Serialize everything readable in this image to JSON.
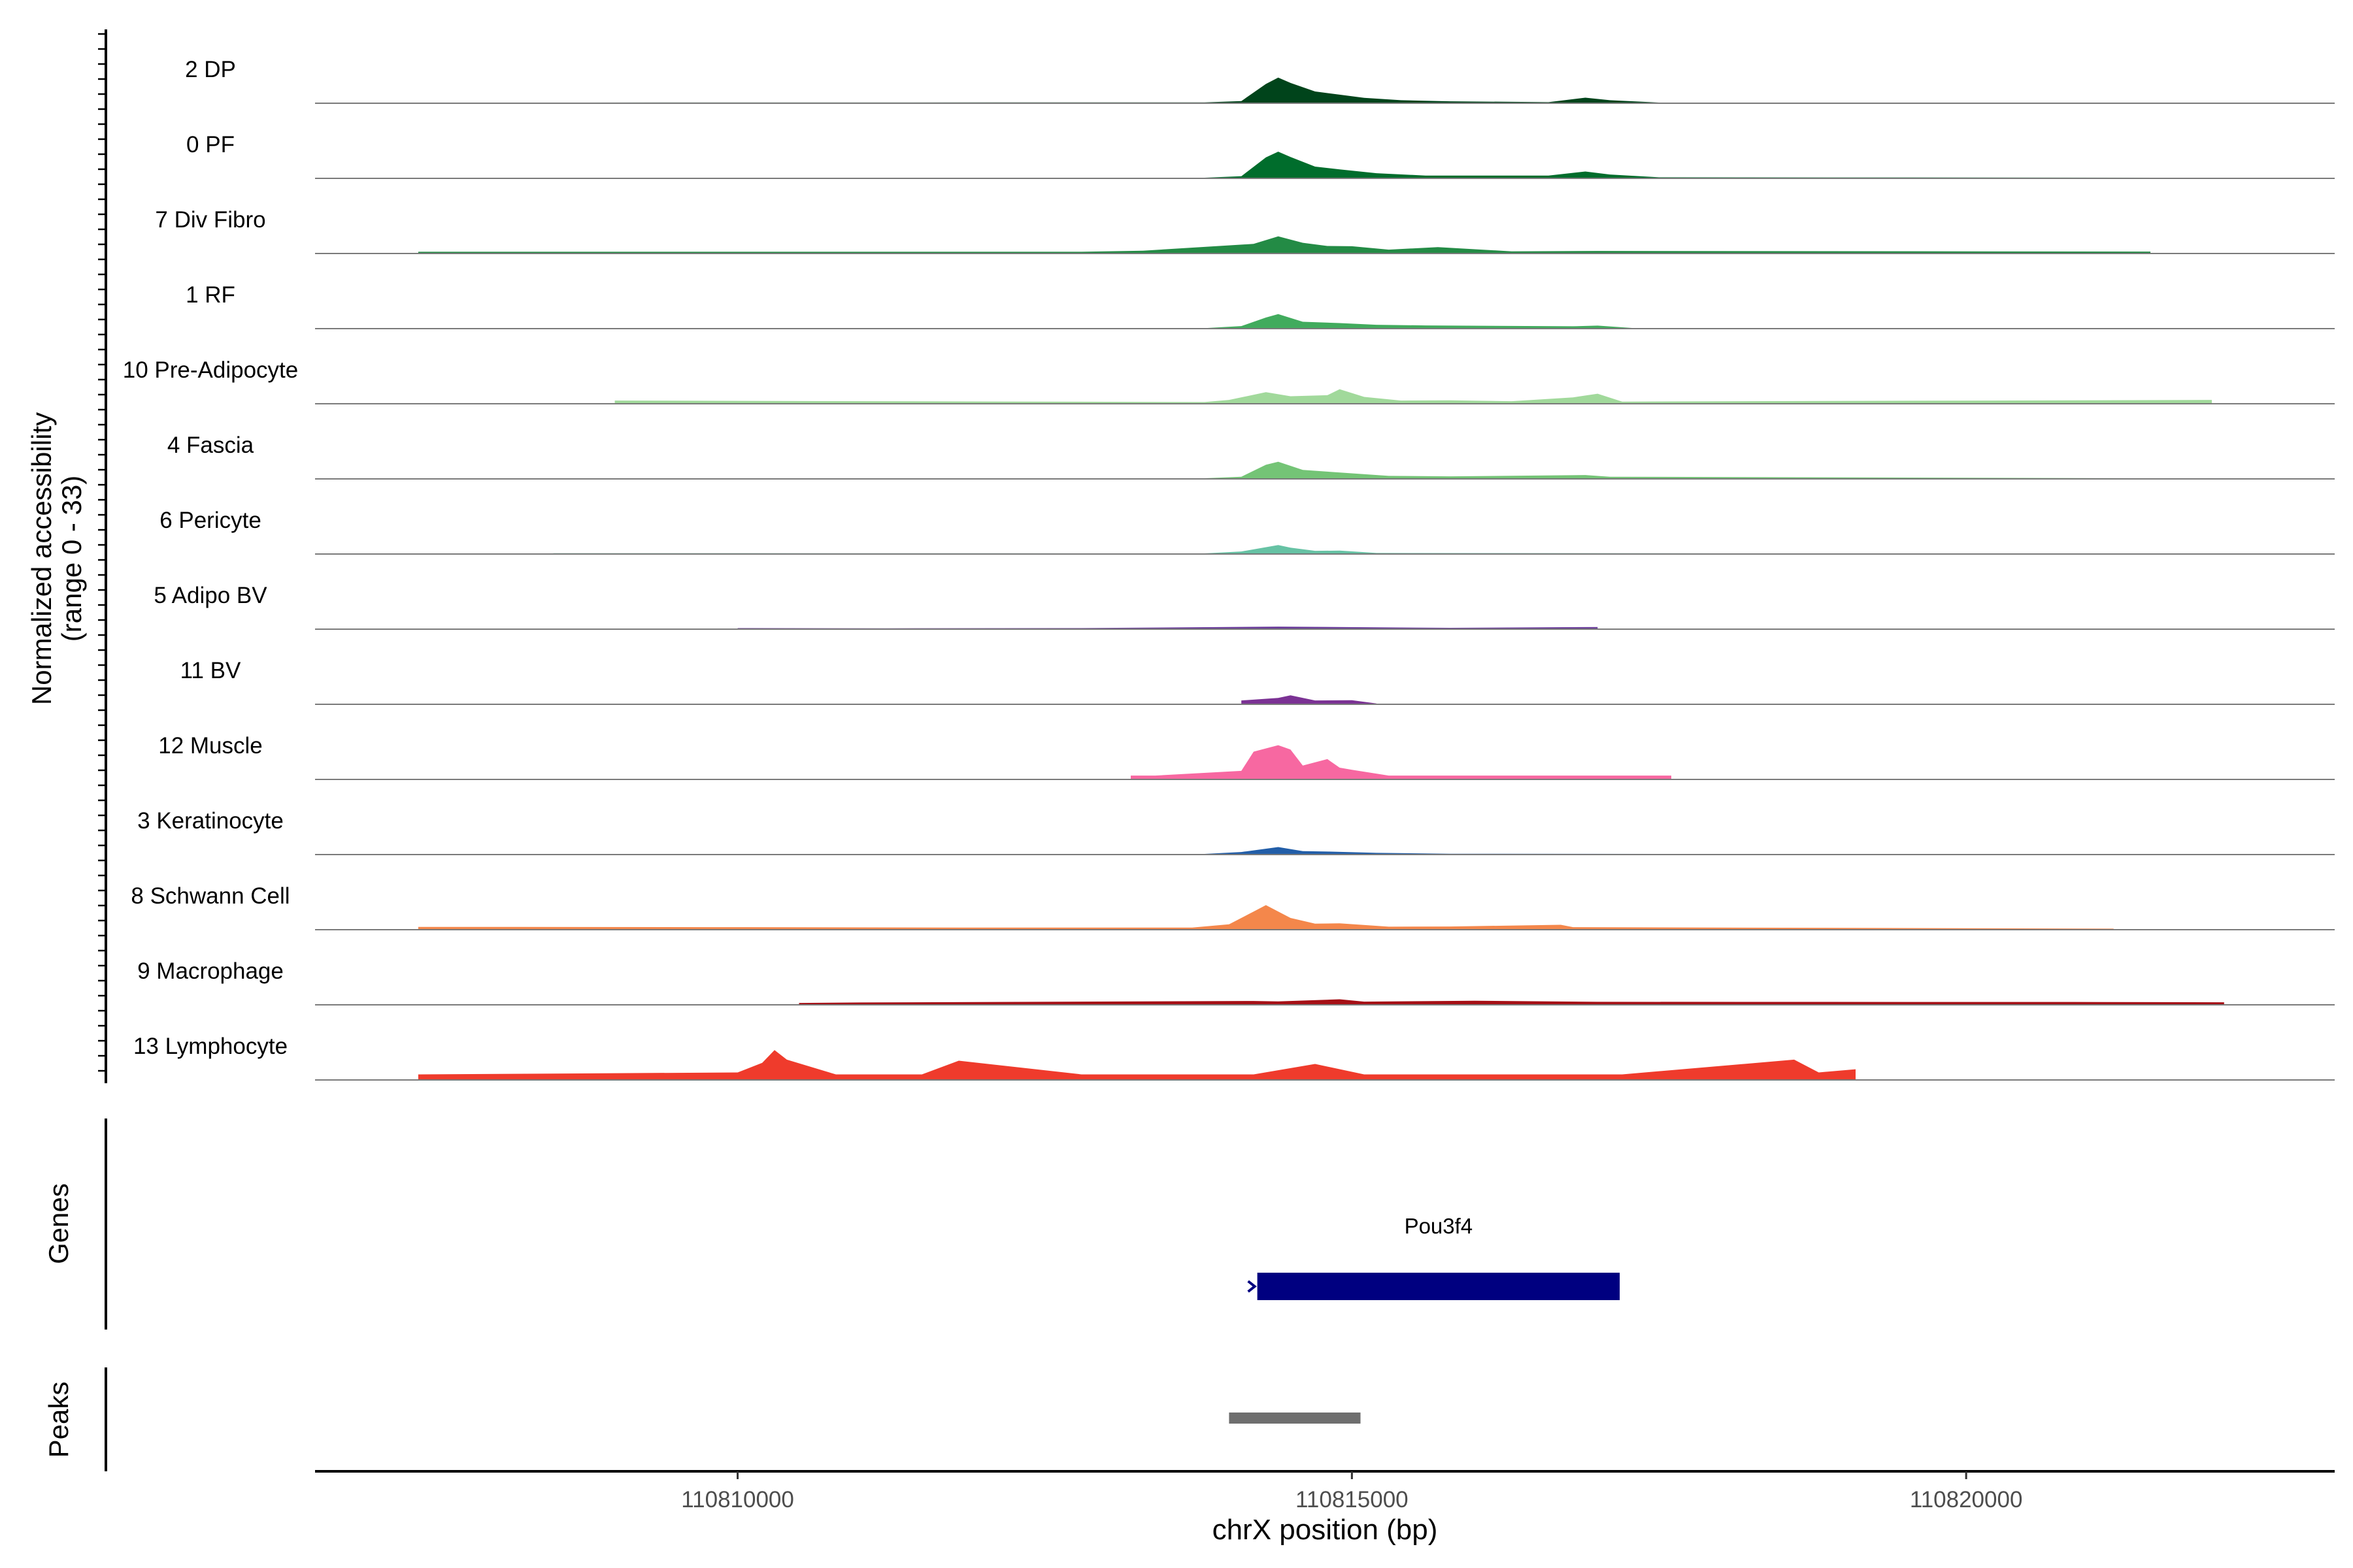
{
  "chart_data": {
    "type": "area",
    "chromosome": "chrX",
    "xlabel": "chrX position (bp)",
    "ylabel": "Normalized accessibility\n(range 0 - 33)",
    "xlim": [
      110806560,
      110823000
    ],
    "x_ticks": [
      110810000,
      110815000,
      110820000
    ],
    "x_tick_labels": [
      "110810000",
      "110815000",
      "110820000"
    ],
    "ylim": [
      0,
      33
    ],
    "tracks": [
      {
        "name": "2 DP",
        "color": "#00441b",
        "points": [
          [
            110807600,
            0.3
          ],
          [
            110813800,
            0.4
          ],
          [
            110814100,
            1.0
          ],
          [
            110814300,
            9.0
          ],
          [
            110814400,
            12.0
          ],
          [
            110814500,
            9.5
          ],
          [
            110814700,
            5.5
          ],
          [
            110814900,
            4.0
          ],
          [
            110815100,
            2.5
          ],
          [
            110815400,
            1.4
          ],
          [
            110815800,
            0.9
          ],
          [
            110816600,
            0.5
          ],
          [
            110816900,
            2.6
          ],
          [
            110817100,
            1.4
          ],
          [
            110817500,
            0.3
          ]
        ]
      },
      {
        "name": "0 PF",
        "color": "#006d2c",
        "points": [
          [
            110807500,
            0.3
          ],
          [
            110813800,
            0.3
          ],
          [
            110814100,
            1.0
          ],
          [
            110814300,
            9.8
          ],
          [
            110814400,
            12.5
          ],
          [
            110814500,
            10.0
          ],
          [
            110814700,
            5.5
          ],
          [
            110814900,
            4.2
          ],
          [
            110815200,
            2.4
          ],
          [
            110815600,
            1.3
          ],
          [
            110816600,
            1.3
          ],
          [
            110816900,
            3.2
          ],
          [
            110817100,
            1.8
          ],
          [
            110817500,
            0.5
          ],
          [
            110822000,
            0.3
          ]
        ]
      },
      {
        "name": "7 Div Fibro",
        "color": "#238b45",
        "points": [
          [
            110807400,
            0.8
          ],
          [
            110812800,
            0.8
          ],
          [
            110813300,
            1.3
          ],
          [
            110814200,
            4.5
          ],
          [
            110814400,
            8.0
          ],
          [
            110814600,
            5.0
          ],
          [
            110814800,
            3.5
          ],
          [
            110815000,
            3.4
          ],
          [
            110815300,
            1.8
          ],
          [
            110815700,
            3.0
          ],
          [
            110816000,
            2.0
          ],
          [
            110816300,
            1.0
          ],
          [
            110817000,
            1.2
          ],
          [
            110821500,
            0.9
          ]
        ]
      },
      {
        "name": "1 RF",
        "color": "#41ab5d",
        "points": [
          [
            110807500,
            0.2
          ],
          [
            110813800,
            0.2
          ],
          [
            110814100,
            1.2
          ],
          [
            110814300,
            5.2
          ],
          [
            110814400,
            6.8
          ],
          [
            110814600,
            3.2
          ],
          [
            110814900,
            2.6
          ],
          [
            110815200,
            1.8
          ],
          [
            110815600,
            1.5
          ],
          [
            110816800,
            1.1
          ],
          [
            110817000,
            1.4
          ],
          [
            110817300,
            0.2
          ]
        ]
      },
      {
        "name": "10 Pre-Adipocyte",
        "color": "#a1d99b",
        "points": [
          [
            110809000,
            1.5
          ],
          [
            110813800,
            0.8
          ],
          [
            110814000,
            1.8
          ],
          [
            110814300,
            5.4
          ],
          [
            110814500,
            3.5
          ],
          [
            110814800,
            4.0
          ],
          [
            110814900,
            6.8
          ],
          [
            110815100,
            3.2
          ],
          [
            110815400,
            1.5
          ],
          [
            110815800,
            1.6
          ],
          [
            110816300,
            1.2
          ],
          [
            110816800,
            3.0
          ],
          [
            110817000,
            4.7
          ],
          [
            110817200,
            1.0
          ],
          [
            110822000,
            1.8
          ]
        ]
      },
      {
        "name": "4 Fascia",
        "color": "#74c476",
        "points": [
          [
            110807500,
            0.3
          ],
          [
            110813800,
            0.3
          ],
          [
            110814100,
            1.0
          ],
          [
            110814300,
            6.6
          ],
          [
            110814400,
            8.0
          ],
          [
            110814600,
            4.2
          ],
          [
            110814800,
            3.4
          ],
          [
            110815000,
            2.6
          ],
          [
            110815300,
            1.4
          ],
          [
            110815800,
            1.2
          ],
          [
            110816900,
            1.8
          ],
          [
            110817100,
            1.0
          ],
          [
            110822000,
            0.2
          ]
        ]
      },
      {
        "name": "6 Pericyte",
        "color": "#66c2a4",
        "points": [
          [
            110808500,
            0.4
          ],
          [
            110813800,
            0.3
          ],
          [
            110814100,
            1.2
          ],
          [
            110814400,
            4.2
          ],
          [
            110814500,
            3.0
          ],
          [
            110814700,
            1.5
          ],
          [
            110814900,
            1.6
          ],
          [
            110815200,
            0.5
          ],
          [
            110818000,
            0.3
          ],
          [
            110820500,
            0.2
          ]
        ]
      },
      {
        "name": "5 Adipo BV",
        "color": "#6a3d9a",
        "points": [
          [
            110810000,
            0.5
          ],
          [
            110811200,
            0.4
          ],
          [
            110812800,
            0.5
          ],
          [
            110814400,
            1.2
          ],
          [
            110815800,
            0.6
          ],
          [
            110817000,
            1.0
          ]
        ]
      },
      {
        "name": "11 BV",
        "color": "#7b3294",
        "points": [
          [
            110814100,
            1.8
          ],
          [
            110814400,
            3.0
          ],
          [
            110814500,
            4.2
          ],
          [
            110814700,
            1.8
          ],
          [
            110815000,
            1.9
          ],
          [
            110815200,
            0.4
          ]
        ]
      },
      {
        "name": "12 Muscle",
        "color": "#f768a1",
        "points": [
          [
            110813200,
            1.8
          ],
          [
            110813400,
            1.8
          ],
          [
            110814100,
            4.0
          ],
          [
            110814200,
            13.0
          ],
          [
            110814400,
            16.0
          ],
          [
            110814500,
            14.0
          ],
          [
            110814600,
            6.5
          ],
          [
            110814800,
            9.5
          ],
          [
            110814900,
            5.5
          ],
          [
            110815000,
            4.5
          ],
          [
            110815300,
            1.8
          ],
          [
            110816400,
            1.8
          ],
          [
            110816600,
            1.8
          ],
          [
            110817300,
            1.8
          ],
          [
            110817600,
            1.8
          ]
        ]
      },
      {
        "name": "3 Keratinocyte",
        "color": "#225ea8",
        "points": [
          [
            110807500,
            0.3
          ],
          [
            110813800,
            0.3
          ],
          [
            110814100,
            1.2
          ],
          [
            110814400,
            3.5
          ],
          [
            110814600,
            1.6
          ],
          [
            110814800,
            1.4
          ],
          [
            110815200,
            0.8
          ],
          [
            110815800,
            0.4
          ],
          [
            110817500,
            0.3
          ],
          [
            110822000,
            0.2
          ]
        ]
      },
      {
        "name": "8 Schwann Cell",
        "color": "#f4874b",
        "points": [
          [
            110807400,
            1.3
          ],
          [
            110808200,
            1.3
          ],
          [
            110809800,
            1.2
          ],
          [
            110811800,
            1.0
          ],
          [
            110813700,
            1.0
          ],
          [
            110814000,
            2.5
          ],
          [
            110814200,
            8.5
          ],
          [
            110814300,
            11.5
          ],
          [
            110814500,
            5.5
          ],
          [
            110814700,
            2.8
          ],
          [
            110814900,
            3.0
          ],
          [
            110815300,
            1.4
          ],
          [
            110815800,
            1.5
          ],
          [
            110816700,
            2.3
          ],
          [
            110816800,
            1.2
          ],
          [
            110821200,
            0.5
          ]
        ]
      },
      {
        "name": "9 Macrophage",
        "color": "#a50f15",
        "points": [
          [
            110810500,
            0.9
          ],
          [
            110811000,
            1.1
          ],
          [
            110814200,
            1.8
          ],
          [
            110814400,
            1.6
          ],
          [
            110814900,
            2.6
          ],
          [
            110815100,
            1.5
          ],
          [
            110816000,
            1.9
          ],
          [
            110817000,
            1.4
          ],
          [
            110821100,
            1.3
          ],
          [
            110822100,
            1.2
          ]
        ]
      },
      {
        "name": "13 Lymphocyte",
        "color": "#ef3b2c",
        "points": [
          [
            110807400,
            2.6
          ],
          [
            110810000,
            3.5
          ],
          [
            110810200,
            8.0
          ],
          [
            110810300,
            14.0
          ],
          [
            110810400,
            9.5
          ],
          [
            110810800,
            2.6
          ],
          [
            110811200,
            2.6
          ],
          [
            110811500,
            2.6
          ],
          [
            110811800,
            9.0
          ],
          [
            110812800,
            2.6
          ],
          [
            110813200,
            2.6
          ],
          [
            110814200,
            2.6
          ],
          [
            110814700,
            7.5
          ],
          [
            110815100,
            2.6
          ],
          [
            110815500,
            2.6
          ],
          [
            110815800,
            2.6
          ],
          [
            110816200,
            2.6
          ],
          [
            110816500,
            2.6
          ],
          [
            110816800,
            2.6
          ],
          [
            110817200,
            2.6
          ],
          [
            110818600,
            9.5
          ],
          [
            110818800,
            3.5
          ],
          [
            110819100,
            5.0
          ]
        ]
      }
    ],
    "genes": [
      {
        "name": "Pou3f4",
        "start": 110814230,
        "end": 110817180,
        "strand": "+",
        "color": "#000080"
      }
    ],
    "gene_panel_label": "Genes",
    "peaks": [
      {
        "start": 110814000,
        "end": 110815070,
        "color": "#6e6e6e"
      }
    ],
    "peaks_panel_label": "Peaks"
  }
}
